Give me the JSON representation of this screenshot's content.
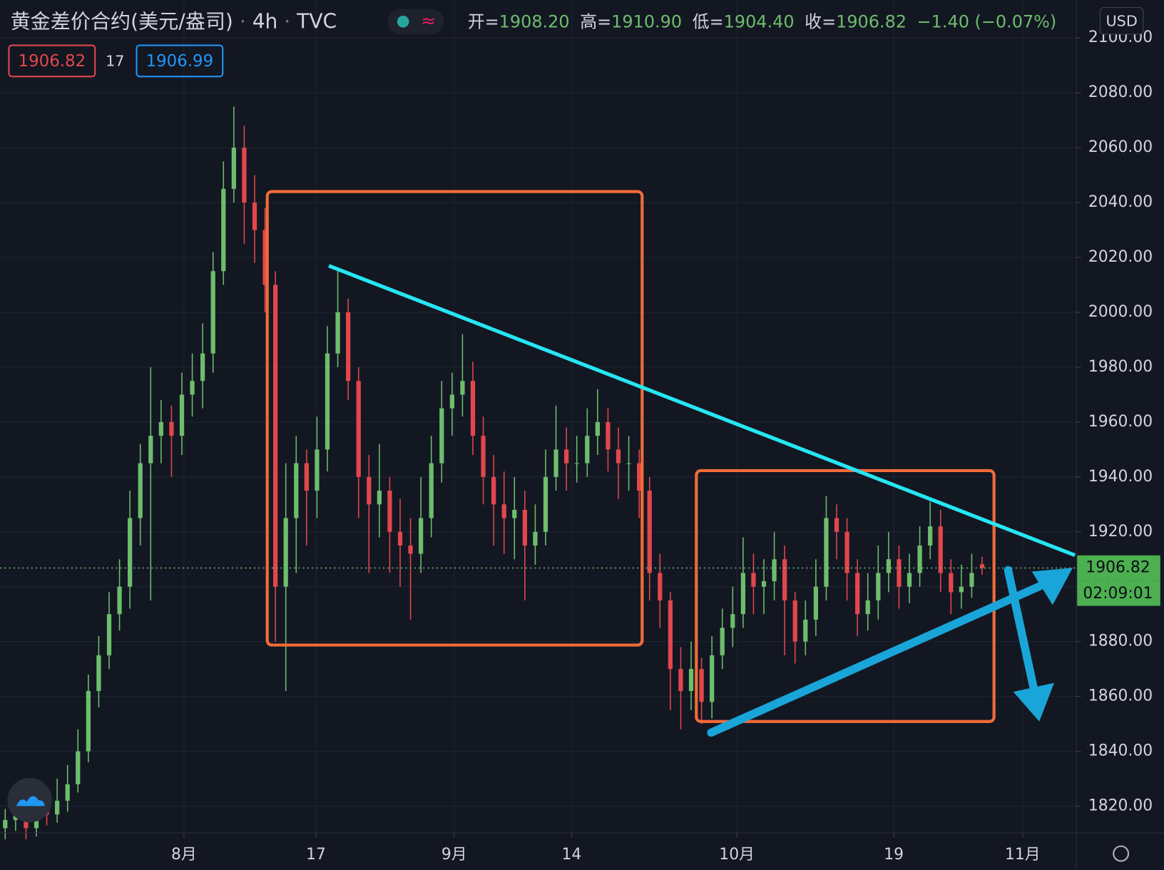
{
  "chart_data": {
    "type": "candlestick",
    "title": "黄金差价合约(美元/盎司)",
    "interval": "4h",
    "source": "TVC",
    "legend": [
      {
        "label": "开=",
        "value": "1908.20"
      },
      {
        "label": "高=",
        "value": "1910.90"
      },
      {
        "label": "低=",
        "value": "1904.40"
      },
      {
        "label": "收=",
        "value": "1906.82"
      }
    ],
    "change": "−1.40 (−0.07%)",
    "bid": "1906.82",
    "spread": "17",
    "ask": "1906.99",
    "currency": "USD",
    "price_label": "1906.82",
    "countdown": "02:09:01",
    "up_color": "#6dbd6d",
    "down_color": "#e2474c",
    "ylim": [
      1810.3,
      2113.8
    ],
    "yticks": [
      {
        "value": 1820,
        "label": "1820.00"
      },
      {
        "value": 1840,
        "label": "1840.00"
      },
      {
        "value": 1860,
        "label": "1860.00"
      },
      {
        "value": 1880,
        "label": "1880.00"
      },
      {
        "value": 1900,
        "label": "1900.00"
      },
      {
        "value": 1920,
        "label": "1920.00"
      },
      {
        "value": 1940,
        "label": "1940.00"
      },
      {
        "value": 1960,
        "label": "1960.00"
      },
      {
        "value": 1980,
        "label": "1980.00"
      },
      {
        "value": 2000,
        "label": "2000.00"
      },
      {
        "value": 2020,
        "label": "2020.00"
      },
      {
        "value": 2040,
        "label": "2040.00"
      },
      {
        "value": 2060,
        "label": "2060.00"
      },
      {
        "value": 2080,
        "label": "2080.00"
      },
      {
        "value": 2100,
        "label": "2100.00"
      }
    ],
    "xlim": [
      -0.5,
      103.07
    ],
    "xticks": [
      {
        "value": 17.2,
        "label": "8月"
      },
      {
        "value": 29.9,
        "label": "17"
      },
      {
        "value": 43.2,
        "label": "9月"
      },
      {
        "value": 54.5,
        "label": "14"
      },
      {
        "value": 70.4,
        "label": "10月"
      },
      {
        "value": 85.5,
        "label": "19"
      },
      {
        "value": 97.9,
        "label": "11月"
      }
    ],
    "grid": true,
    "ohlc": [
      [
        1812,
        1819,
        1808,
        1815
      ],
      [
        1815,
        1823,
        1811,
        1818
      ],
      [
        1818,
        1821,
        1808,
        1812
      ],
      [
        1812,
        1826,
        1809,
        1820
      ],
      [
        1820,
        1824,
        1813,
        1817
      ],
      [
        1817,
        1830,
        1814,
        1822
      ],
      [
        1822,
        1835,
        1818,
        1828
      ],
      [
        1828,
        1848,
        1825,
        1840
      ],
      [
        1840,
        1868,
        1836,
        1862
      ],
      [
        1862,
        1882,
        1856,
        1875
      ],
      [
        1875,
        1898,
        1870,
        1890
      ],
      [
        1890,
        1910,
        1884,
        1900
      ],
      [
        1900,
        1935,
        1892,
        1925
      ],
      [
        1925,
        1952,
        1915,
        1945
      ],
      [
        1945,
        1980,
        1895,
        1955
      ],
      [
        1955,
        1968,
        1945,
        1960
      ],
      [
        1960,
        1966,
        1940,
        1955
      ],
      [
        1955,
        1978,
        1948,
        1970
      ],
      [
        1970,
        1985,
        1962,
        1975
      ],
      [
        1975,
        1996,
        1965,
        1985
      ],
      [
        1985,
        2022,
        1978,
        2015
      ],
      [
        2015,
        2055,
        2010,
        2045
      ],
      [
        2045,
        2075,
        2040,
        2060
      ],
      [
        2060,
        2068,
        2025,
        2040
      ],
      [
        2040,
        2050,
        2018,
        2030
      ],
      [
        2030,
        2038,
        2000,
        2010
      ],
      [
        2010,
        2015,
        1880,
        1900
      ],
      [
        1900,
        1945,
        1862,
        1925
      ],
      [
        1925,
        1955,
        1905,
        1945
      ],
      [
        1945,
        1950,
        1915,
        1935
      ],
      [
        1935,
        1962,
        1925,
        1950
      ],
      [
        1950,
        1995,
        1942,
        1985
      ],
      [
        1985,
        2015,
        1980,
        2000
      ],
      [
        2000,
        2005,
        1968,
        1975
      ],
      [
        1975,
        1980,
        1925,
        1940
      ],
      [
        1940,
        1948,
        1905,
        1930
      ],
      [
        1930,
        1952,
        1918,
        1935
      ],
      [
        1935,
        1940,
        1905,
        1920
      ],
      [
        1920,
        1932,
        1900,
        1915
      ],
      [
        1915,
        1925,
        1888,
        1912
      ],
      [
        1912,
        1940,
        1905,
        1925
      ],
      [
        1925,
        1955,
        1918,
        1945
      ],
      [
        1945,
        1975,
        1938,
        1965
      ],
      [
        1965,
        1978,
        1955,
        1970
      ],
      [
        1970,
        1992,
        1962,
        1975
      ],
      [
        1975,
        1982,
        1948,
        1955
      ],
      [
        1955,
        1962,
        1930,
        1940
      ],
      [
        1940,
        1948,
        1915,
        1930
      ],
      [
        1930,
        1942,
        1912,
        1925
      ],
      [
        1925,
        1940,
        1910,
        1928
      ],
      [
        1928,
        1935,
        1895,
        1915
      ],
      [
        1915,
        1930,
        1908,
        1920
      ],
      [
        1920,
        1950,
        1915,
        1940
      ],
      [
        1940,
        1966,
        1935,
        1950
      ],
      [
        1950,
        1958,
        1935,
        1945
      ],
      [
        1945,
        1955,
        1938,
        1945
      ],
      [
        1945,
        1965,
        1940,
        1955
      ],
      [
        1955,
        1972,
        1948,
        1960
      ],
      [
        1960,
        1965,
        1942,
        1950
      ],
      [
        1950,
        1958,
        1932,
        1945
      ],
      [
        1945,
        1955,
        1935,
        1945
      ],
      [
        1945,
        1950,
        1925,
        1935
      ],
      [
        1935,
        1940,
        1895,
        1905
      ],
      [
        1905,
        1912,
        1885,
        1895
      ],
      [
        1895,
        1898,
        1855,
        1870
      ],
      [
        1870,
        1878,
        1848,
        1862
      ],
      [
        1862,
        1880,
        1855,
        1870
      ],
      [
        1870,
        1874,
        1850,
        1858
      ],
      [
        1858,
        1882,
        1852,
        1875
      ],
      [
        1875,
        1892,
        1870,
        1885
      ],
      [
        1885,
        1900,
        1878,
        1890
      ],
      [
        1890,
        1918,
        1885,
        1905
      ],
      [
        1905,
        1912,
        1890,
        1900
      ],
      [
        1900,
        1910,
        1890,
        1902
      ],
      [
        1902,
        1920,
        1895,
        1910
      ],
      [
        1910,
        1915,
        1875,
        1895
      ],
      [
        1895,
        1898,
        1872,
        1880
      ],
      [
        1880,
        1895,
        1875,
        1888
      ],
      [
        1888,
        1910,
        1882,
        1900
      ],
      [
        1900,
        1933,
        1895,
        1925
      ],
      [
        1925,
        1930,
        1910,
        1920
      ],
      [
        1920,
        1925,
        1895,
        1905
      ],
      [
        1905,
        1910,
        1882,
        1890
      ],
      [
        1890,
        1905,
        1884,
        1895
      ],
      [
        1895,
        1915,
        1888,
        1905
      ],
      [
        1905,
        1920,
        1898,
        1910
      ],
      [
        1910,
        1915,
        1892,
        1900
      ],
      [
        1900,
        1912,
        1894,
        1905
      ],
      [
        1905,
        1922,
        1900,
        1915
      ],
      [
        1915,
        1931,
        1910,
        1922
      ],
      [
        1922,
        1928,
        1898,
        1905
      ],
      [
        1905,
        1910,
        1890,
        1898
      ],
      [
        1898,
        1908,
        1892,
        1900
      ],
      [
        1900,
        1912,
        1896,
        1905
      ],
      [
        1908.2,
        1910.9,
        1904.4,
        1906.82
      ]
    ]
  }
}
